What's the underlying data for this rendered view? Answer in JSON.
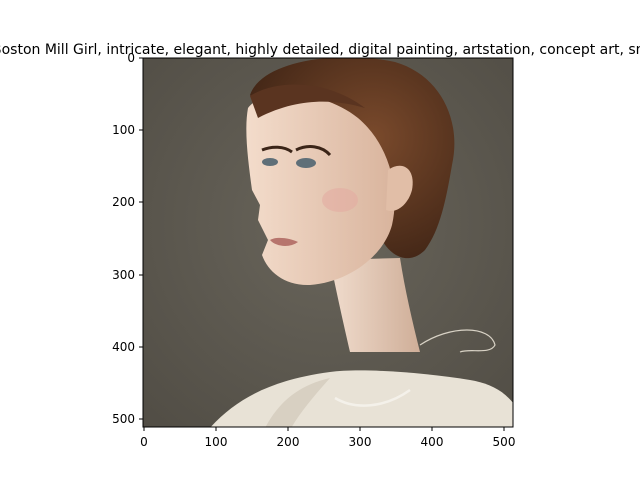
{
  "title": "Boston Mill Girl, intricate, elegant, highly detailed, digital painting, artstation, concept art, smooth, sharp focus, illustration",
  "image": {
    "subject": "portrait painting of a young woman with auburn hair in an updo, three-quarter profile, cream lace blouse, dark olive background",
    "colors": {
      "background": "#5f5b52",
      "hair": "#5a3420",
      "skin": "#ecd0bd",
      "blouse": "#e8e2d6"
    }
  },
  "axes": {
    "xlim": [
      0,
      512
    ],
    "ylim": [
      512,
      0
    ],
    "xticks": [
      "0",
      "100",
      "200",
      "300",
      "400",
      "500"
    ],
    "yticks": [
      "0",
      "100",
      "200",
      "300",
      "400",
      "500"
    ]
  }
}
